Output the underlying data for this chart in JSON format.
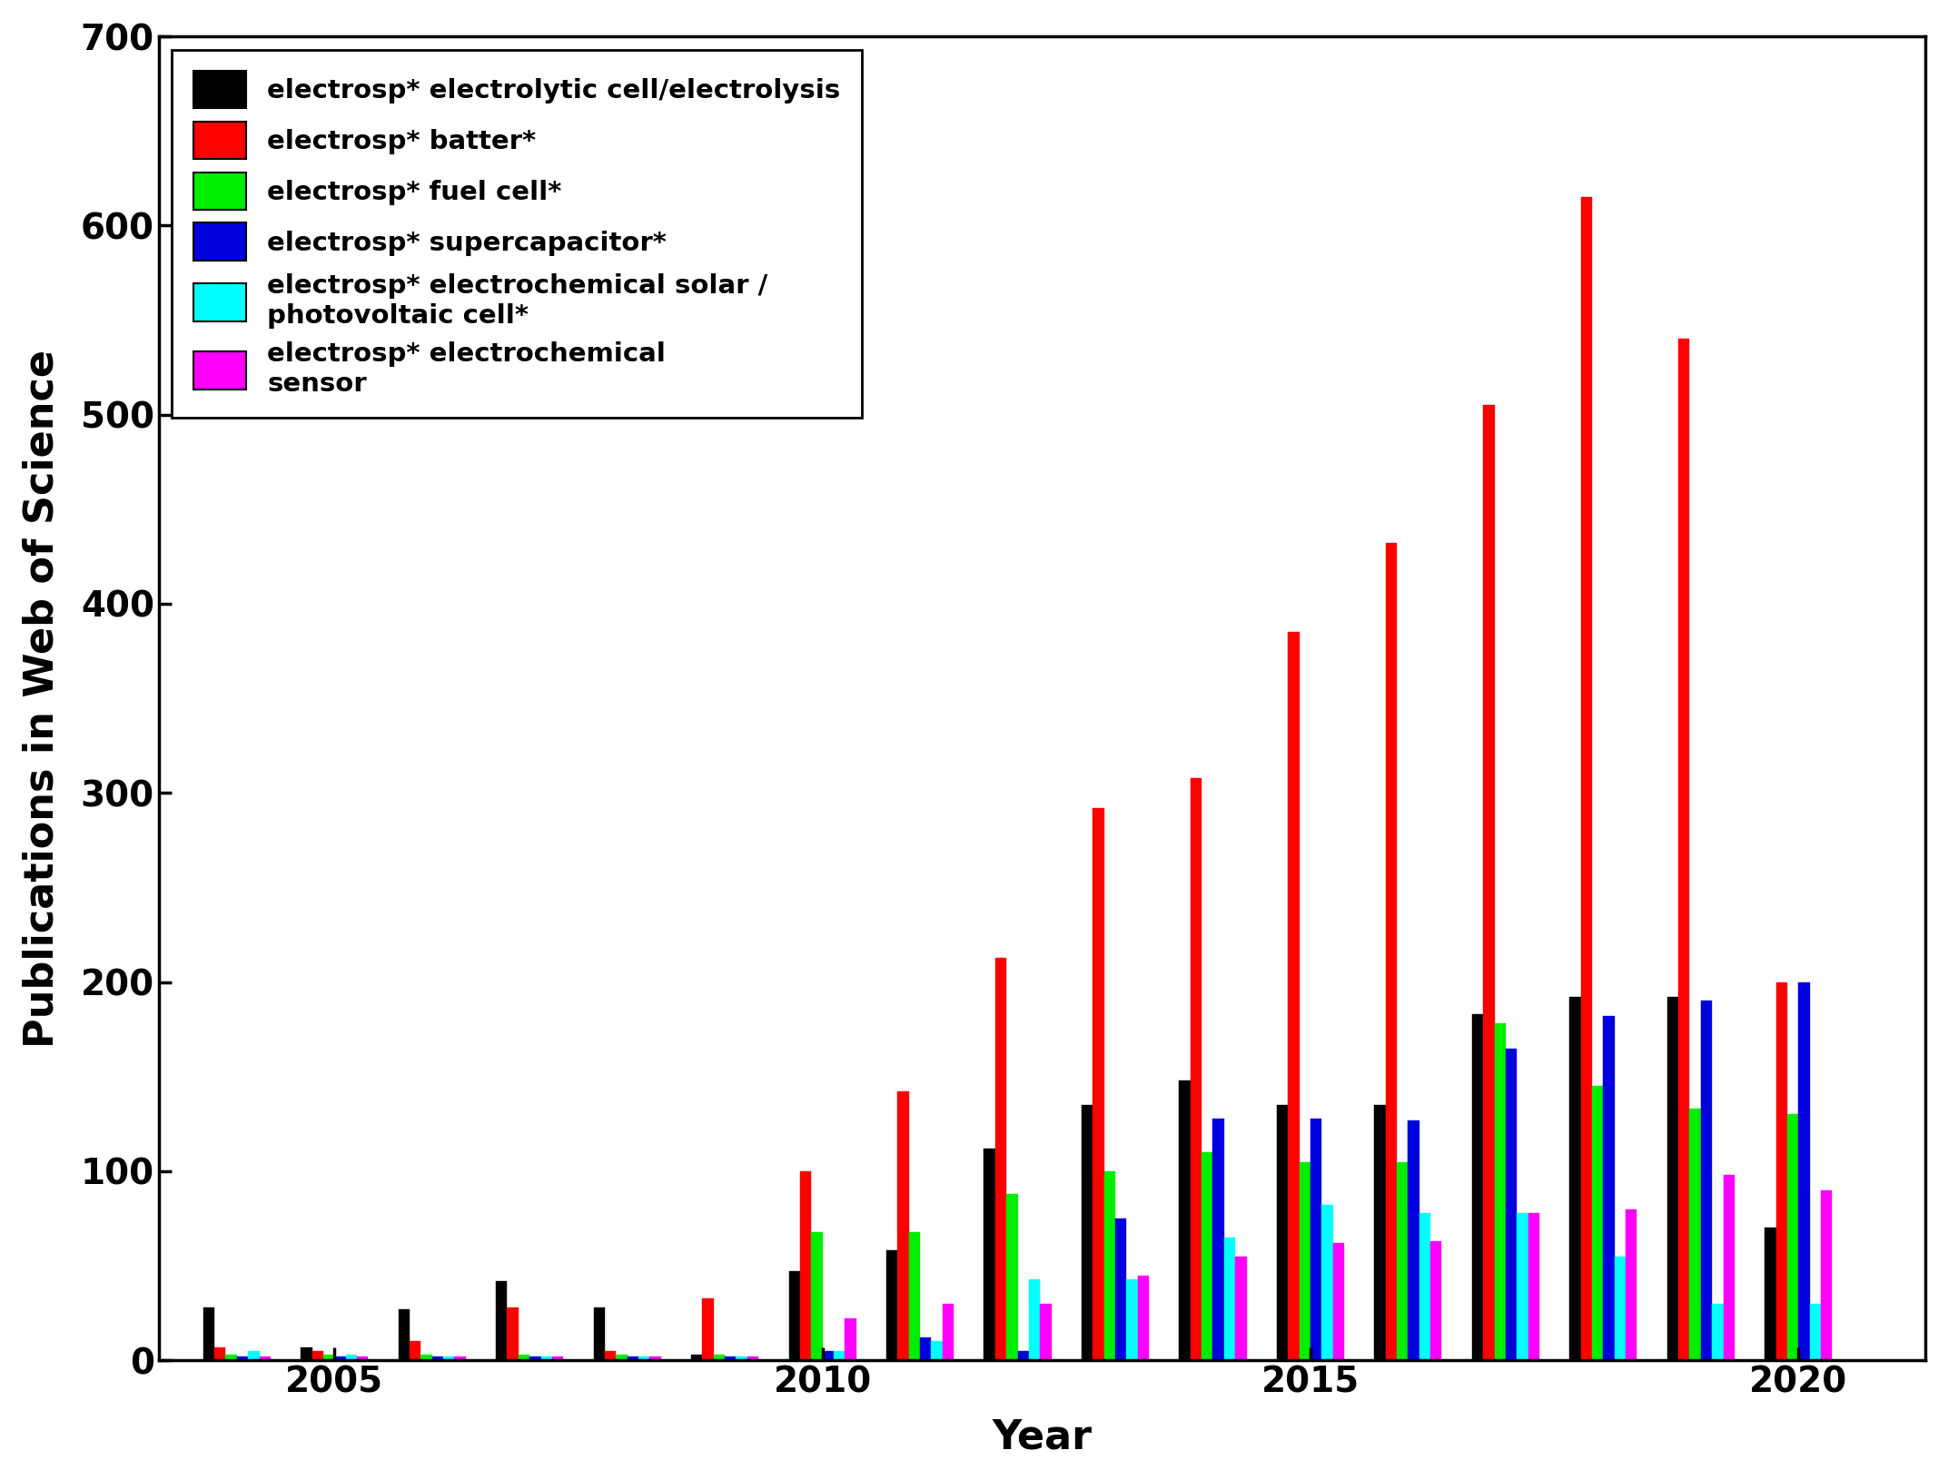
{
  "years": [
    2004,
    2005,
    2006,
    2007,
    2008,
    2009,
    2010,
    2011,
    2012,
    2013,
    2014,
    2015,
    2016,
    2017,
    2018,
    2019,
    2020
  ],
  "series": {
    "electrolytic": [
      28,
      7,
      27,
      42,
      28,
      3,
      47,
      58,
      112,
      135,
      148,
      135,
      135,
      183,
      192,
      192,
      70
    ],
    "battery": [
      7,
      5,
      10,
      28,
      5,
      33,
      100,
      142,
      213,
      292,
      308,
      385,
      432,
      505,
      615,
      540,
      200
    ],
    "fuel_cell": [
      3,
      3,
      3,
      3,
      3,
      3,
      68,
      68,
      88,
      100,
      110,
      105,
      105,
      178,
      145,
      133,
      130
    ],
    "supercapacitor": [
      2,
      2,
      2,
      2,
      2,
      2,
      5,
      12,
      5,
      75,
      128,
      128,
      127,
      165,
      182,
      190,
      200
    ],
    "solar": [
      5,
      3,
      2,
      2,
      2,
      2,
      5,
      10,
      43,
      43,
      65,
      82,
      78,
      78,
      55,
      30,
      30
    ],
    "sensor": [
      2,
      2,
      2,
      2,
      2,
      2,
      22,
      30,
      30,
      45,
      55,
      62,
      63,
      78,
      80,
      98,
      90
    ]
  },
  "colors": {
    "electrolytic": "#000000",
    "battery": "#ff0000",
    "fuel_cell": "#00ee00",
    "supercapacitor": "#0000dd",
    "solar": "#00ffff",
    "sensor": "#ff00ff"
  },
  "legend_labels": {
    "electrolytic": "electrosp* electrolytic cell/electrolysis",
    "battery": "electrosp* batter*",
    "fuel_cell": "electrosp* fuel cell*",
    "supercapacitor": "electrosp* supercapacitor*",
    "solar": "electrosp* electrochemical solar /\nphotovoltaic cell*",
    "sensor": "electrosp* electrochemical\nsensor"
  },
  "xlabel": "Year",
  "ylabel": "Publications in Web of Science",
  "ylim": [
    0,
    700
  ],
  "yticks": [
    0,
    100,
    200,
    300,
    400,
    500,
    600,
    700
  ],
  "xlim": [
    2003.2,
    2021.3
  ],
  "xticks": [
    2005,
    2010,
    2015,
    2020
  ],
  "bar_width": 0.115,
  "background_color": "#ffffff",
  "axis_color": "#000000",
  "tick_fontsize": 28,
  "label_fontsize": 32,
  "legend_fontsize": 21
}
